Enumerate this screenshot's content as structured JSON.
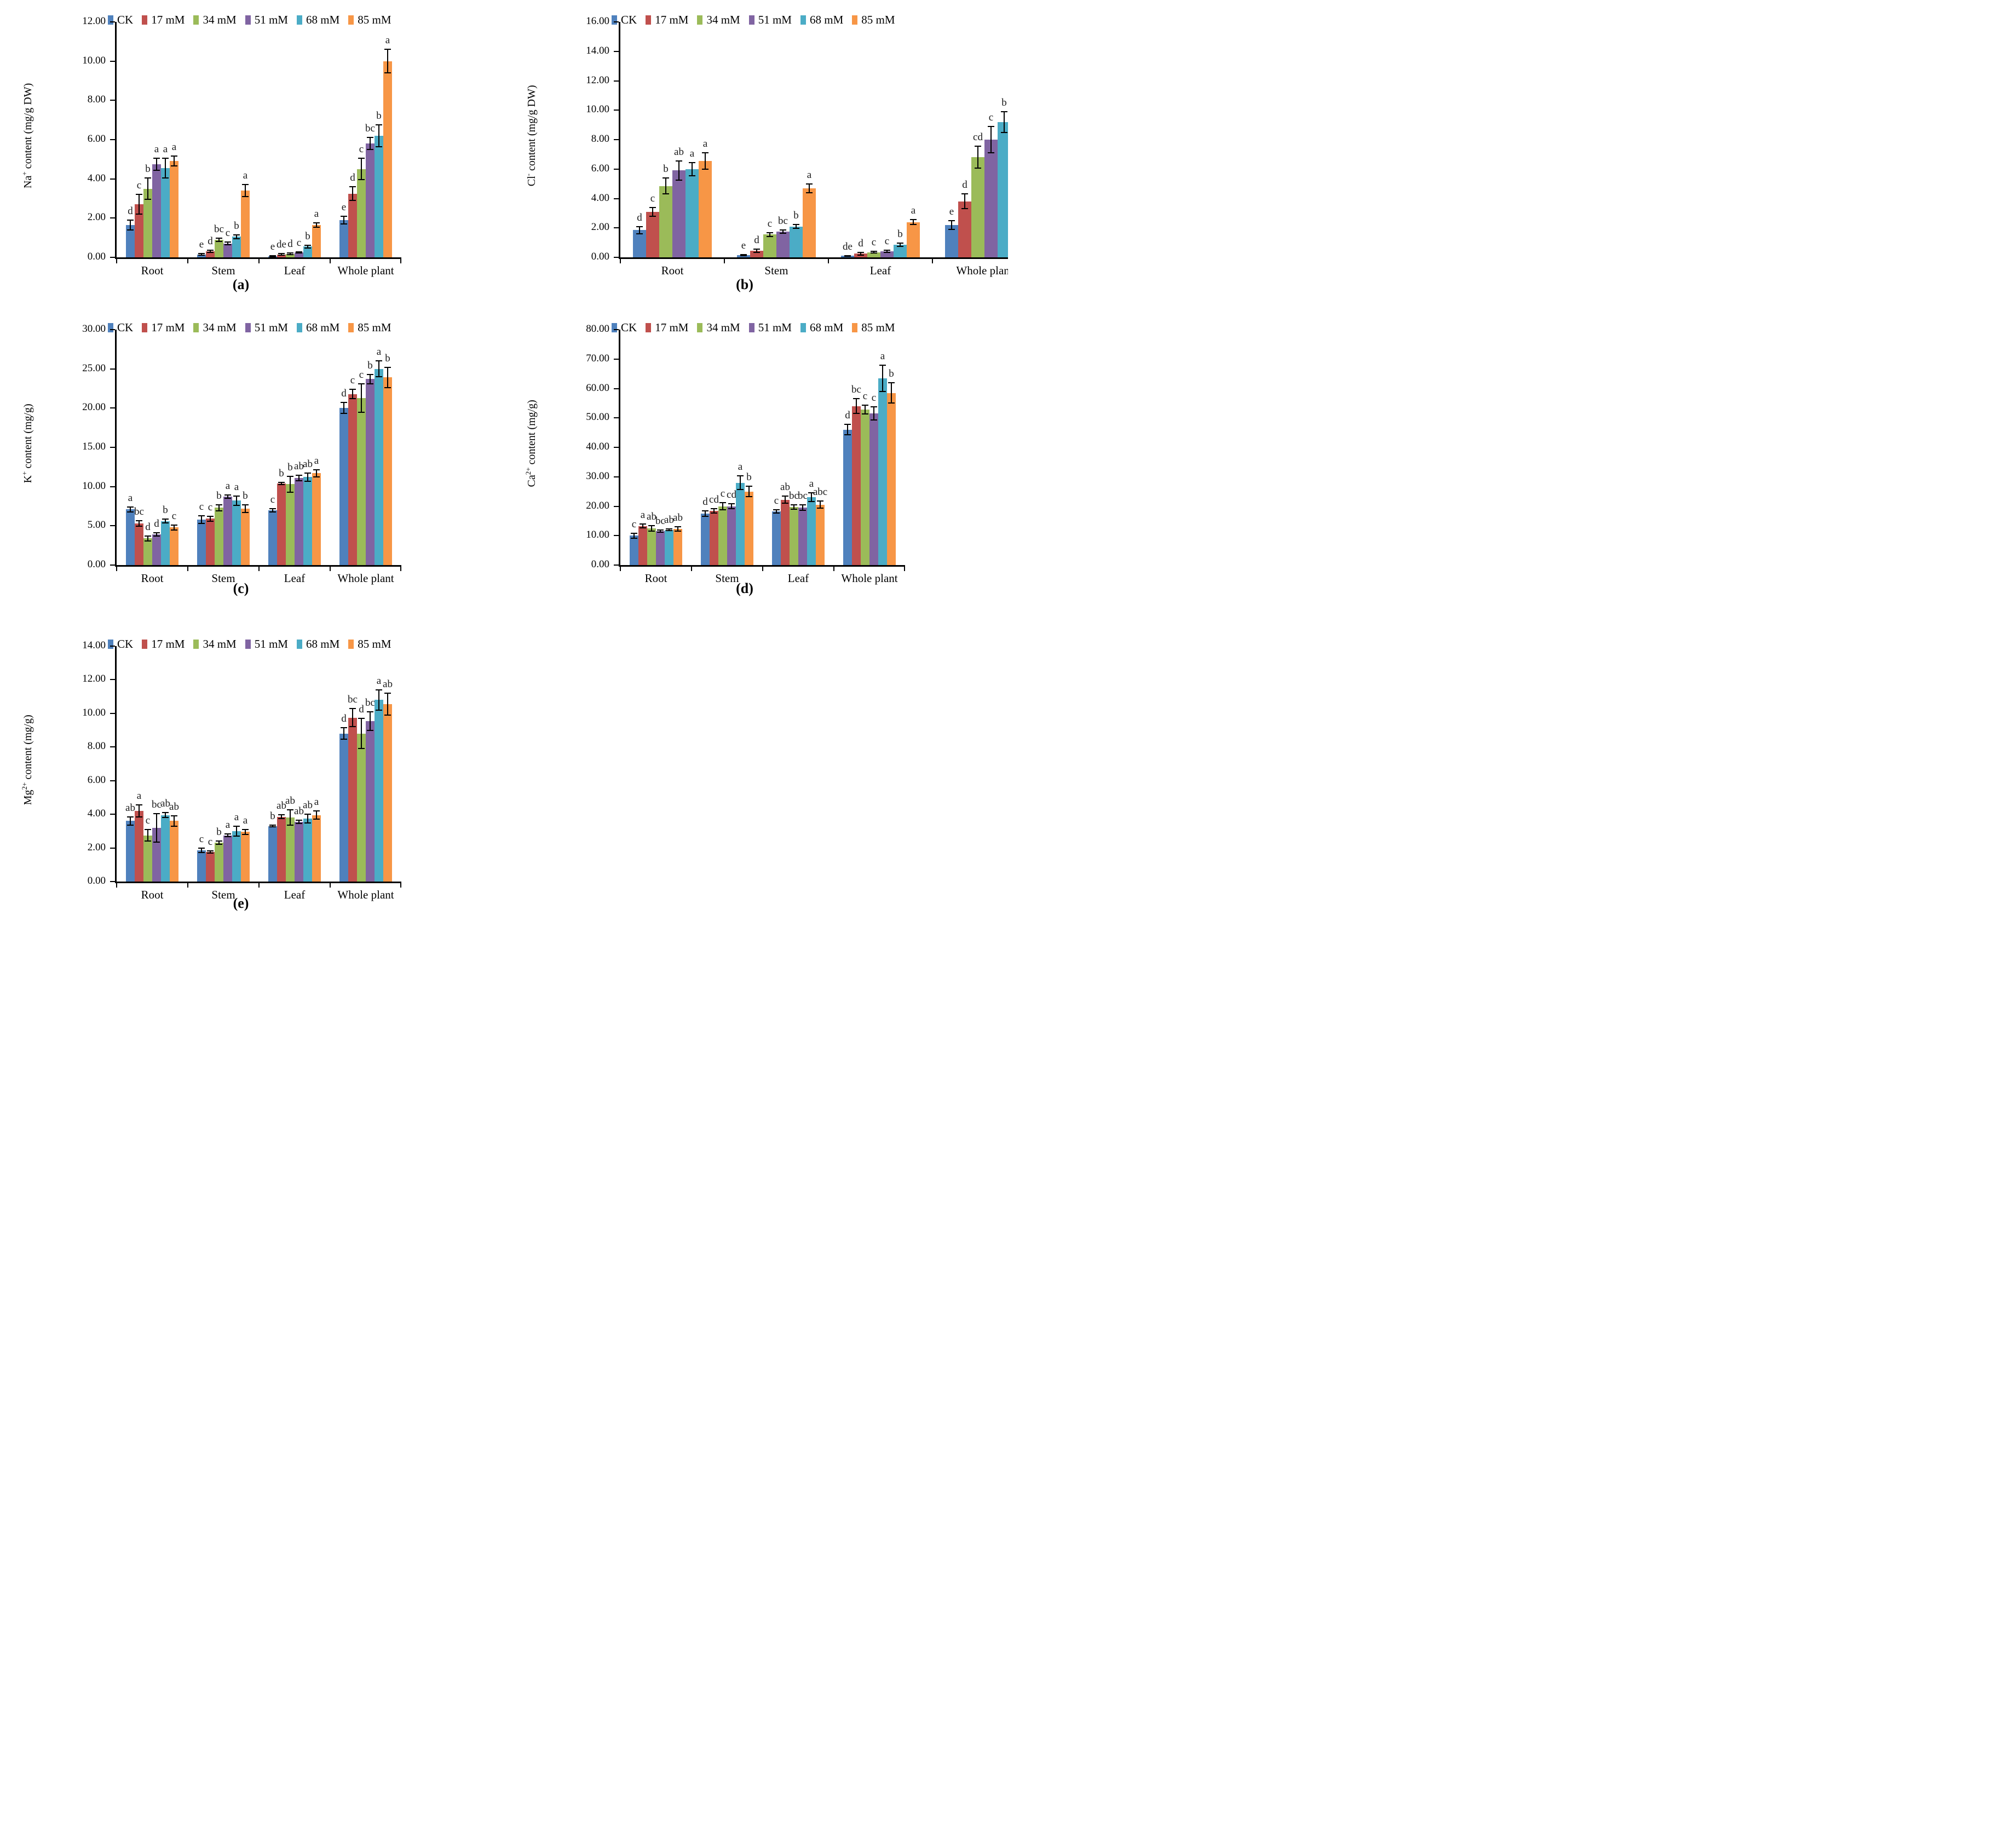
{
  "figure": {
    "background": "#ffffff",
    "description": "Five bar-chart panels (a-e) of ion contents in Root, Stem, Leaf and Whole plant under salinity treatments",
    "note_panel_b": "Panel (b) is clipped at the right edge of the image; the 85 mM Whole plant bar is cut off and the category label reads only 'Whole pla'"
  },
  "legend": {
    "labels": [
      "CK",
      "17 mM",
      "34 mM",
      "51 mM",
      "68 mM",
      "85 mM"
    ]
  },
  "series_colors": [
    "#4F81BD",
    "#C0504D",
    "#9BBB59",
    "#8064A2",
    "#4BACC6",
    "#F79646"
  ],
  "error_bar_color": "#000000",
  "categories": [
    "Root",
    "Stem",
    "Leaf",
    "Whole plant"
  ],
  "chart_data": [
    {
      "type": "bar",
      "id": "a",
      "panel_label": "(a)",
      "ylabel_prefix": "Na",
      "ylabel_sup": "+",
      "ylabel_rest": " content (mg/g DW)",
      "ylim": [
        0,
        12
      ],
      "ystep": 2,
      "grid": false,
      "legend_position": "top",
      "categories": [
        "Root",
        "Stem",
        "Leaf",
        "Whole plant"
      ],
      "series": [
        {
          "name": "CK",
          "values": [
            1.65,
            0.15,
            0.05,
            1.9
          ],
          "errors": [
            0.25,
            0.05,
            0.03,
            0.2
          ],
          "letters": [
            "d",
            "e",
            "e",
            "e"
          ]
        },
        {
          "name": "17 mM",
          "values": [
            2.7,
            0.3,
            0.15,
            3.25
          ],
          "errors": [
            0.5,
            0.05,
            0.04,
            0.35
          ],
          "letters": [
            "c",
            "d",
            "de",
            "d"
          ]
        },
        {
          "name": "34 mM",
          "values": [
            3.5,
            0.9,
            0.18,
            4.5
          ],
          "errors": [
            0.55,
            0.08,
            0.04,
            0.55
          ],
          "letters": [
            "b",
            "bc",
            "d",
            "c"
          ]
        },
        {
          "name": "51 mM",
          "values": [
            4.75,
            0.7,
            0.25,
            5.8
          ],
          "errors": [
            0.3,
            0.07,
            0.04,
            0.3
          ],
          "letters": [
            "a",
            "c",
            "c",
            "bc"
          ]
        },
        {
          "name": "68 mM",
          "values": [
            4.55,
            1.05,
            0.55,
            6.2
          ],
          "errors": [
            0.5,
            0.1,
            0.07,
            0.55
          ],
          "letters": [
            "a",
            "b",
            "b",
            "b"
          ]
        },
        {
          "name": "85 mM",
          "values": [
            4.9,
            3.4,
            1.65,
            10.0
          ],
          "errors": [
            0.25,
            0.3,
            0.12,
            0.6
          ],
          "letters": [
            "a",
            "a",
            "a",
            "a"
          ]
        }
      ]
    },
    {
      "type": "bar",
      "id": "b",
      "panel_label": "(b)",
      "ylabel_prefix": "Cl",
      "ylabel_sup": "-",
      "ylabel_rest": " content (mg/g DW)",
      "ylim": [
        0,
        16
      ],
      "ystep": 2,
      "grid": false,
      "legend_position": "top",
      "clipped_right": true,
      "categories": [
        "Root",
        "Stem",
        "Leaf",
        "Whole plant"
      ],
      "series": [
        {
          "name": "CK",
          "values": [
            1.85,
            0.15,
            0.1,
            2.2
          ],
          "errors": [
            0.25,
            0.04,
            0.03,
            0.3
          ],
          "letters": [
            "d",
            "e",
            "de",
            "e"
          ]
        },
        {
          "name": "17 mM",
          "values": [
            3.1,
            0.45,
            0.25,
            3.8
          ],
          "errors": [
            0.3,
            0.1,
            0.1,
            0.5
          ],
          "letters": [
            "c",
            "d",
            "d",
            "d"
          ]
        },
        {
          "name": "34 mM",
          "values": [
            4.85,
            1.55,
            0.35,
            6.8
          ],
          "errors": [
            0.55,
            0.12,
            0.07,
            0.75
          ],
          "letters": [
            "b",
            "c",
            "c",
            "cd"
          ]
        },
        {
          "name": "51 mM",
          "values": [
            5.9,
            1.75,
            0.4,
            8.0
          ],
          "errors": [
            0.65,
            0.12,
            0.07,
            0.9
          ],
          "letters": [
            "ab",
            "bc",
            "c",
            "c"
          ]
        },
        {
          "name": "68 mM",
          "values": [
            6.0,
            2.1,
            0.85,
            9.2
          ],
          "errors": [
            0.45,
            0.12,
            0.1,
            0.7
          ],
          "letters": [
            "a",
            "b",
            "b",
            "b"
          ]
        },
        {
          "name": "85 mM",
          "values": [
            6.55,
            4.7,
            2.4,
            null
          ],
          "errors": [
            0.55,
            0.3,
            0.15,
            null
          ],
          "letters": [
            "a",
            "a",
            "a",
            null
          ]
        }
      ]
    },
    {
      "type": "bar",
      "id": "c",
      "panel_label": "(c)",
      "ylabel_prefix": "K",
      "ylabel_sup": "+",
      "ylabel_rest": " content (mg/g)",
      "ylim": [
        0,
        30
      ],
      "ystep": 5,
      "grid": false,
      "legend_position": "top",
      "categories": [
        "Root",
        "Stem",
        "Leaf",
        "Whole plant"
      ],
      "series": [
        {
          "name": "CK",
          "values": [
            7.1,
            5.8,
            7.0,
            20.0
          ],
          "errors": [
            0.3,
            0.5,
            0.2,
            0.7
          ],
          "letters": [
            "a",
            "c",
            "c",
            "d"
          ]
        },
        {
          "name": "17 mM",
          "values": [
            5.3,
            5.9,
            10.4,
            21.8
          ],
          "errors": [
            0.35,
            0.3,
            0.15,
            0.6
          ],
          "letters": [
            "bc",
            "c",
            "b",
            "c"
          ]
        },
        {
          "name": "34 mM",
          "values": [
            3.4,
            7.3,
            10.3,
            21.3
          ],
          "errors": [
            0.3,
            0.4,
            1.0,
            1.8
          ],
          "letters": [
            "d",
            "b",
            "b",
            "c"
          ]
        },
        {
          "name": "51 mM",
          "values": [
            3.9,
            8.7,
            11.1,
            23.7
          ],
          "errors": [
            0.2,
            0.2,
            0.35,
            0.6
          ],
          "letters": [
            "d",
            "a",
            "ab",
            "b"
          ]
        },
        {
          "name": "68 mM",
          "values": [
            5.6,
            8.2,
            11.2,
            25.0
          ],
          "errors": [
            0.25,
            0.6,
            0.55,
            1.0
          ],
          "letters": [
            "b",
            "a",
            "ab",
            "a"
          ]
        },
        {
          "name": "85 mM",
          "values": [
            4.8,
            7.2,
            11.7,
            23.9
          ],
          "errors": [
            0.3,
            0.5,
            0.45,
            1.3
          ],
          "letters": [
            "c",
            "b",
            "a",
            "b"
          ]
        }
      ]
    },
    {
      "type": "bar",
      "id": "d",
      "panel_label": "(d)",
      "ylabel_prefix": "Ca",
      "ylabel_sup": "2+",
      "ylabel_rest": " content (mg/g)",
      "ylim": [
        0,
        80
      ],
      "ystep": 10,
      "grid": false,
      "legend_position": "top",
      "categories": [
        "Root",
        "Stem",
        "Leaf",
        "Whole plant"
      ],
      "series": [
        {
          "name": "CK",
          "values": [
            10.0,
            17.5,
            18.2,
            46.0
          ],
          "errors": [
            0.8,
            1.0,
            0.5,
            1.8
          ],
          "letters": [
            "c",
            "d",
            "c",
            "d"
          ]
        },
        {
          "name": "17 mM",
          "values": [
            13.3,
            18.4,
            22.2,
            54.0
          ],
          "errors": [
            0.6,
            0.8,
            1.2,
            2.5
          ],
          "letters": [
            "a",
            "cd",
            "ab",
            "bc"
          ]
        },
        {
          "name": "34 mM",
          "values": [
            12.5,
            20.0,
            19.7,
            52.8
          ],
          "errors": [
            0.9,
            1.2,
            0.8,
            1.5
          ],
          "letters": [
            "ab",
            "c",
            "bc",
            "c"
          ]
        },
        {
          "name": "51 mM",
          "values": [
            11.6,
            20.0,
            19.5,
            51.5
          ],
          "errors": [
            0.4,
            0.8,
            0.9,
            2.2
          ],
          "letters": [
            "bc",
            "cd",
            "bc",
            "c"
          ]
        },
        {
          "name": "68 mM",
          "values": [
            12.0,
            28.0,
            23.0,
            63.5
          ],
          "errors": [
            0.3,
            2.3,
            1.5,
            4.5
          ],
          "letters": [
            "ab",
            "a",
            "a",
            "a"
          ]
        },
        {
          "name": "85 mM",
          "values": [
            12.3,
            25.0,
            20.5,
            58.5
          ],
          "errors": [
            0.7,
            1.8,
            1.2,
            3.5
          ],
          "letters": [
            "ab",
            "b",
            "abc",
            "b"
          ]
        }
      ]
    },
    {
      "type": "bar",
      "id": "e",
      "panel_label": "(e)",
      "ylabel_prefix": "Mg",
      "ylabel_sup": "2+",
      "ylabel_rest": " content (mg/g)",
      "ylim": [
        0,
        14
      ],
      "ystep": 2,
      "grid": false,
      "legend_position": "top",
      "categories": [
        "Root",
        "Stem",
        "Leaf",
        "Whole plant"
      ],
      "series": [
        {
          "name": "CK",
          "values": [
            3.6,
            1.85,
            3.3,
            8.8
          ],
          "errors": [
            0.25,
            0.12,
            0.05,
            0.35
          ],
          "letters": [
            "ab",
            "c",
            "b",
            "d"
          ]
        },
        {
          "name": "17 mM",
          "values": [
            4.2,
            1.75,
            3.85,
            9.75
          ],
          "errors": [
            0.35,
            0.07,
            0.12,
            0.55
          ],
          "letters": [
            "a",
            "c",
            "ab",
            "bc"
          ]
        },
        {
          "name": "34 mM",
          "values": [
            2.75,
            2.3,
            3.8,
            8.8
          ],
          "errors": [
            0.35,
            0.1,
            0.45,
            0.9
          ],
          "letters": [
            "c",
            "b",
            "ab",
            "d"
          ]
        },
        {
          "name": "51 mM",
          "values": [
            3.2,
            2.75,
            3.55,
            9.55
          ],
          "errors": [
            0.85,
            0.07,
            0.1,
            0.55
          ],
          "letters": [
            "bc",
            "a",
            "ab",
            "bc"
          ]
        },
        {
          "name": "68 mM",
          "values": [
            3.95,
            3.0,
            3.75,
            10.8
          ],
          "errors": [
            0.15,
            0.3,
            0.25,
            0.6
          ],
          "letters": [
            "ab",
            "a",
            "ab",
            "a"
          ]
        },
        {
          "name": "85 mM",
          "values": [
            3.6,
            2.95,
            3.95,
            10.55
          ],
          "errors": [
            0.3,
            0.15,
            0.25,
            0.65
          ],
          "letters": [
            "ab",
            "a",
            "a",
            "ab"
          ]
        }
      ]
    }
  ]
}
